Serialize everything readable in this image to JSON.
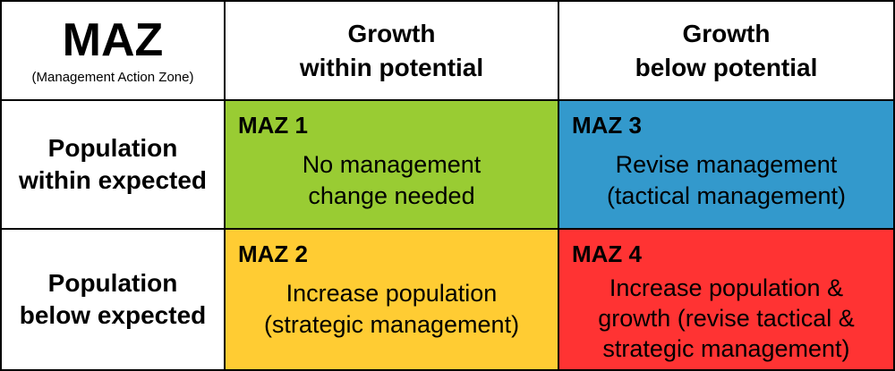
{
  "header": {
    "title": "MAZ",
    "subtitle": "(Management Action Zone)",
    "columns": [
      {
        "line1": "Growth",
        "line2": "within potential"
      },
      {
        "line1": "Growth",
        "line2": "below potential"
      }
    ]
  },
  "rows": [
    {
      "line1": "Population",
      "line2": "within expected"
    },
    {
      "line1": "Population",
      "line2": "below expected"
    }
  ],
  "zones": {
    "maz1": {
      "label": "MAZ 1",
      "lines": [
        "No management",
        "change needed"
      ],
      "bg": "#99cc33",
      "text_color": "#000000"
    },
    "maz2": {
      "label": "MAZ 2",
      "lines": [
        "Increase population",
        "(strategic management)"
      ],
      "bg": "#ffcc33",
      "text_color": "#000000"
    },
    "maz3": {
      "label": "MAZ 3",
      "lines": [
        "Revise management",
        "(tactical management)"
      ],
      "bg": "#3399cc",
      "text_color": "#000000"
    },
    "maz4": {
      "label": "MAZ 4",
      "lines": [
        "Increase population &",
        "growth (revise tactical &",
        "strategic management)"
      ],
      "bg": "#ff3333",
      "text_color": "#000000"
    }
  }
}
